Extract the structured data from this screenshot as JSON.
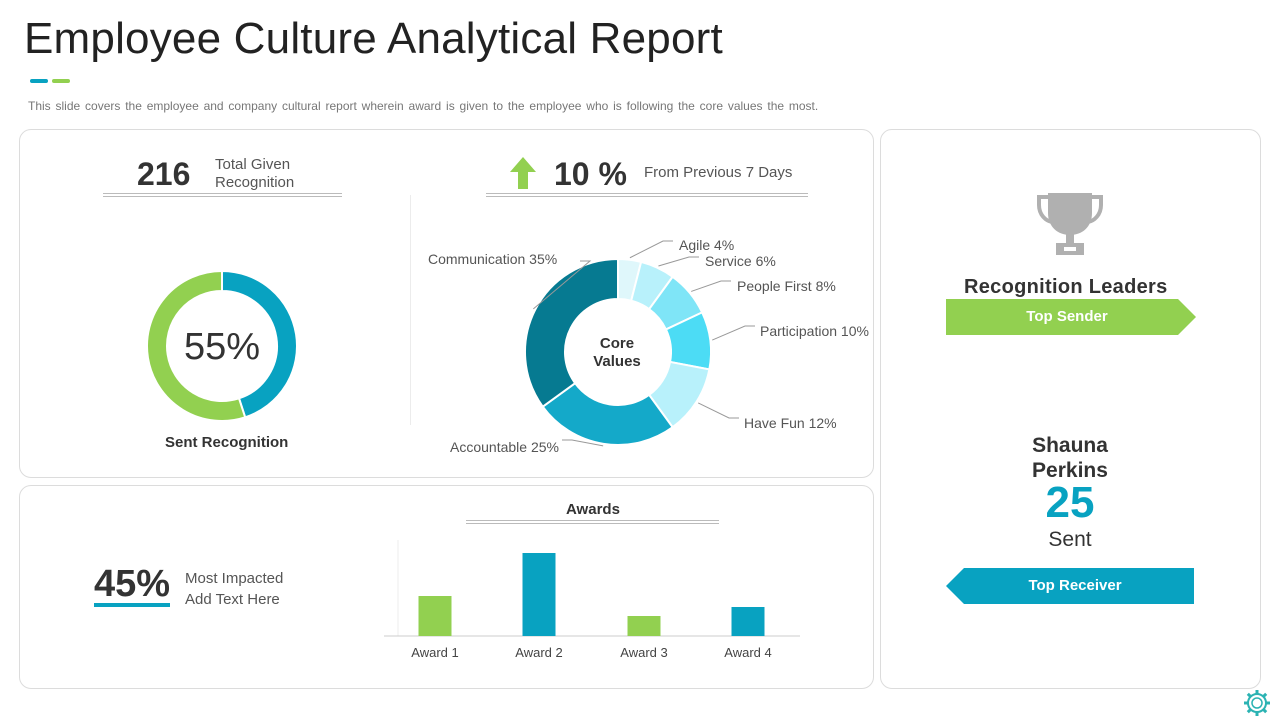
{
  "header": {
    "title": "Employee Culture Analytical Report",
    "subtitle": "This slide covers the employee and company cultural report wherein award is given to the employee who is following the core values the most."
  },
  "colors": {
    "green": "#92d050",
    "teal": "#08a2c1",
    "dark_teal": "#067a91",
    "mid_teal": "#14a9c9",
    "cyan": "#4cdcf5",
    "light_cyan": "#7fe5f7",
    "pale_cyan": "#b8f1fb",
    "very_pale": "#dff7fb",
    "grey": "#ececec",
    "trophy": "#b0b0b0"
  },
  "recognition": {
    "total_value": "216",
    "total_label_line1": "Total Given",
    "total_label_line2": "Recognition",
    "sent_percent_text": "55%",
    "sent_percent_value": 55,
    "sent_caption": "Sent Recognition"
  },
  "change": {
    "value": "10 %",
    "label": "From Previous 7 Days",
    "icon": "arrow-up-icon"
  },
  "core_values": {
    "center_line1": "Core",
    "center_line2": "Values",
    "segments": [
      {
        "name": "Agile",
        "percent": 4,
        "label": "Agile 4%"
      },
      {
        "name": "Service",
        "percent": 6,
        "label": "Service 6%"
      },
      {
        "name": "People First",
        "percent": 8,
        "label": "People First 8%"
      },
      {
        "name": "Participation",
        "percent": 10,
        "label": "Participation 10%"
      },
      {
        "name": "Have Fun",
        "percent": 12,
        "label": "Have Fun 12%"
      },
      {
        "name": "Accountable",
        "percent": 25,
        "label": "Accountable 25%"
      },
      {
        "name": "Communication",
        "percent": 35,
        "label": "Communication 35%"
      }
    ]
  },
  "impact": {
    "value": "45%",
    "line1": "Most Impacted",
    "line2": "Add Text Here"
  },
  "chart_data": {
    "type": "bar",
    "title": "Awards",
    "categories": [
      "Award 1",
      "Award 2",
      "Award 3",
      "Award 4"
    ],
    "values": [
      40,
      83,
      20,
      29
    ],
    "ylim": [
      0,
      100
    ],
    "xlabel": "",
    "ylabel": ""
  },
  "leaders": {
    "title": "Recognition Leaders",
    "top_sender_label": "Top Sender",
    "name_line1": "Shauna",
    "name_line2": "Perkins",
    "count": "25",
    "count_suffix": "Sent",
    "top_receiver_label": "Top Receiver",
    "icon": "trophy-icon"
  }
}
